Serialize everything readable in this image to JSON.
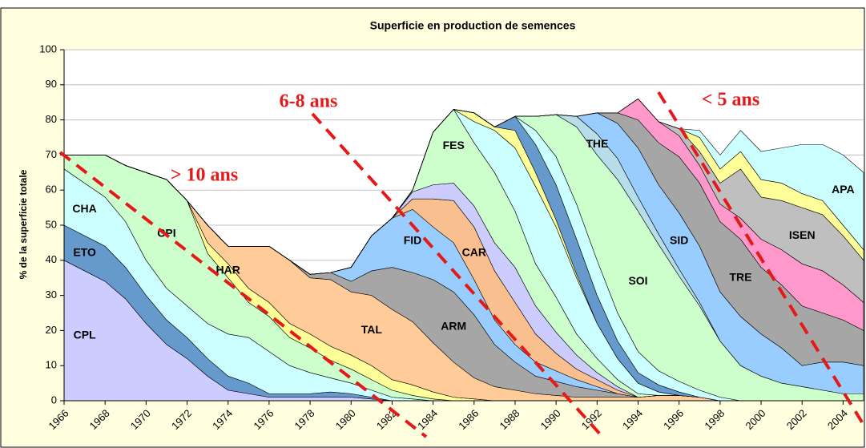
{
  "chart_data": {
    "type": "stacked-area",
    "title": "Superficie en production de semences",
    "ylabel": "% de la superficie totale",
    "ylim": [
      0,
      100
    ],
    "yticks": [
      0,
      10,
      20,
      30,
      40,
      50,
      60,
      70,
      80,
      90,
      100
    ],
    "xlim": [
      1966,
      2005
    ],
    "xticks": [
      1966,
      1968,
      1970,
      1972,
      1974,
      1976,
      1978,
      1980,
      1982,
      1984,
      1986,
      1988,
      1990,
      1992,
      1994,
      1996,
      1998,
      2000,
      2002,
      2004
    ],
    "grid": true,
    "annotations": [
      "> 10 ans",
      "6-8 ans",
      "< 5 ans"
    ],
    "x": [
      1966,
      1967,
      1968,
      1969,
      1970,
      1971,
      1972,
      1973,
      1974,
      1975,
      1976,
      1977,
      1978,
      1979,
      1980,
      1981,
      1982,
      1983,
      1984,
      1985,
      1986,
      1987,
      1988,
      1989,
      1990,
      1991,
      1992,
      1993,
      1994,
      1995,
      1996,
      1997,
      1998,
      1999,
      2000,
      2001,
      2002,
      2003,
      2004,
      2005
    ],
    "series": [
      {
        "name": "CPL",
        "color": "#ccccff",
        "values": [
          40,
          37,
          34,
          29,
          22,
          16,
          12,
          7,
          3,
          2,
          1,
          1,
          1,
          1,
          1,
          0.5,
          0,
          0,
          0,
          0,
          0,
          0,
          0,
          0,
          0,
          0,
          0,
          0,
          0,
          0,
          0,
          0,
          0,
          0,
          0,
          0,
          0,
          0,
          0,
          0
        ]
      },
      {
        "name": "ETO",
        "color": "#6699cc",
        "values": [
          10,
          10,
          10,
          9,
          8,
          7,
          6,
          5,
          4,
          3,
          1,
          1,
          1,
          1.5,
          1,
          0.5,
          0,
          0,
          0,
          0,
          0,
          0,
          0,
          0,
          0,
          0,
          0,
          0,
          0,
          0,
          0,
          0,
          0,
          0,
          0,
          0,
          0,
          0,
          0,
          0
        ]
      },
      {
        "name": "CHA",
        "color": "#ccffff",
        "values": [
          16,
          15,
          14,
          13,
          10,
          9,
          9,
          10,
          12,
          13,
          12,
          8,
          6,
          4,
          3,
          2,
          1,
          0.5,
          0,
          0,
          0,
          0,
          0,
          0,
          0,
          0,
          0,
          0,
          0,
          0,
          0,
          0,
          0,
          0,
          0,
          0,
          0,
          0,
          0,
          0
        ]
      },
      {
        "name": "CPI",
        "color": "#ccffcc",
        "values": [
          4,
          8,
          12,
          16,
          25,
          31,
          30,
          20,
          16,
          10,
          10,
          8,
          7,
          5,
          4,
          3,
          2,
          1,
          0.5,
          0,
          0,
          0,
          0,
          0,
          0,
          0,
          0,
          0,
          0,
          0,
          0,
          0,
          0,
          0,
          0,
          0,
          0,
          0,
          0,
          0
        ]
      },
      {
        "name": "HAR",
        "color": "#ffff99",
        "values": [
          0,
          0,
          0,
          0,
          0,
          0,
          0,
          3,
          4,
          4,
          4,
          4,
          4,
          4,
          4,
          4,
          3,
          3,
          2,
          1,
          0.5,
          0,
          0,
          0,
          0,
          0,
          0,
          0,
          0,
          0,
          0,
          0,
          0,
          0,
          0,
          0,
          0,
          0,
          0,
          0
        ]
      },
      {
        "name": "TAL",
        "color": "#ffcc99",
        "values": [
          0,
          0,
          0,
          0,
          0,
          0,
          0,
          5,
          5,
          12,
          16,
          18,
          16,
          19,
          18,
          20,
          20,
          18,
          14,
          10,
          6,
          4,
          3,
          2,
          1.5,
          1,
          1,
          1,
          1,
          1.5,
          1.5,
          1,
          0,
          0,
          0,
          0,
          0,
          0,
          0,
          0
        ]
      },
      {
        "name": "ARM",
        "color": "#a6a6a6",
        "values": [
          0,
          0,
          0,
          0,
          0,
          0,
          0,
          0,
          0,
          0,
          0,
          0,
          1,
          2,
          3,
          7,
          12,
          14,
          18,
          20,
          18,
          12,
          8,
          5,
          4,
          3,
          2,
          1,
          0,
          0,
          0,
          0,
          0,
          0,
          0,
          0,
          0,
          0,
          0,
          0
        ]
      },
      {
        "name": "FID",
        "color": "#99ccff",
        "values": [
          0,
          0,
          0,
          0,
          0,
          0,
          0,
          0,
          0,
          0,
          0,
          0,
          0,
          0,
          4,
          10,
          14,
          18,
          15,
          14,
          10,
          7,
          5,
          4,
          3,
          2,
          1,
          0,
          0,
          0,
          0,
          0,
          0,
          0,
          0,
          0,
          0,
          0,
          0,
          0
        ]
      },
      {
        "name": "CAR",
        "color": "#fabf8f",
        "values": [
          0,
          0,
          0,
          0,
          0,
          0,
          0,
          0,
          0,
          0,
          0,
          0,
          0,
          0,
          0,
          0,
          0,
          3,
          8,
          12,
          15,
          14,
          12,
          8,
          5,
          3,
          2,
          1,
          0,
          0,
          0,
          0,
          0,
          0,
          0,
          0,
          0,
          0,
          0,
          0
        ]
      },
      {
        "color": "#ccccff",
        "values": [
          0,
          0,
          0,
          0,
          0,
          0,
          0,
          0,
          0,
          0,
          0,
          0,
          0,
          0,
          0,
          0,
          0,
          2,
          4,
          5,
          6,
          8,
          10,
          8,
          6,
          4,
          2,
          1,
          0,
          0,
          0,
          0,
          0,
          0,
          0,
          0,
          0,
          0,
          0,
          0
        ]
      },
      {
        "name": "FES",
        "color": "#ccffcc",
        "values": [
          0,
          0,
          0,
          0,
          0,
          0,
          0,
          0,
          0,
          0,
          0,
          0,
          0,
          0,
          0,
          0,
          0,
          0.5,
          15,
          21,
          18,
          20,
          16,
          12,
          10,
          6,
          4,
          2,
          1,
          0,
          0,
          0,
          0,
          0,
          0,
          0,
          0,
          0,
          0,
          0
        ]
      },
      {
        "color": "#ccffff",
        "values": [
          0,
          0,
          0,
          0,
          0,
          0,
          0,
          0,
          0,
          0,
          0,
          0,
          0,
          0,
          0,
          0,
          0,
          0,
          0,
          0,
          6,
          12,
          18,
          22,
          20,
          16,
          10,
          6,
          3,
          1,
          0,
          0,
          0,
          0,
          0,
          0,
          0,
          0,
          0,
          0
        ]
      },
      {
        "color": "#ffff99",
        "values": [
          0,
          0,
          0,
          0,
          0,
          0,
          0,
          0,
          0,
          0,
          0,
          0,
          0,
          0,
          0,
          0,
          0,
          0,
          0,
          0,
          2.5,
          1,
          5,
          4,
          2,
          1,
          0,
          0,
          0,
          0,
          0,
          0,
          0,
          0,
          0,
          0,
          0,
          0,
          0,
          0
        ]
      },
      {
        "color": "#6699cc",
        "values": [
          0,
          0,
          0,
          0,
          0,
          0,
          0,
          0,
          0,
          0,
          0,
          0,
          0,
          0,
          0,
          0,
          0,
          0,
          0,
          0,
          0,
          0,
          4,
          8,
          10,
          10,
          8,
          5,
          3,
          2,
          1,
          0,
          0,
          0,
          0,
          0,
          0,
          0,
          0,
          0
        ]
      },
      {
        "color": "#ccffff",
        "values": [
          0,
          0,
          0,
          0,
          0,
          0,
          0,
          0,
          0,
          0,
          0,
          0,
          0,
          0,
          0,
          0,
          0,
          0,
          0,
          0,
          0,
          0,
          0,
          4,
          8,
          10,
          10,
          8,
          6,
          4,
          3,
          2,
          1,
          0,
          0,
          0,
          0,
          0,
          0,
          0
        ]
      },
      {
        "name": "SOI",
        "color": "#ccffcc",
        "values": [
          0,
          0,
          0,
          0,
          0,
          0,
          0,
          0,
          0,
          0,
          0,
          0,
          0,
          0,
          0,
          0,
          0,
          0,
          0,
          0,
          0,
          0,
          0,
          4,
          12,
          22,
          30,
          38,
          40,
          36,
          30,
          24,
          16,
          10,
          7,
          5,
          4,
          3,
          2,
          2
        ]
      },
      {
        "name": "THE",
        "color": "#b7dee8",
        "values": [
          0,
          0,
          0,
          0,
          0,
          0,
          0,
          0,
          0,
          0,
          0,
          0,
          0,
          0,
          0,
          0,
          0,
          0,
          0,
          0,
          0,
          0,
          0,
          0,
          0,
          3,
          6,
          6,
          4,
          3,
          2,
          1,
          0,
          0,
          0,
          0,
          0,
          0,
          0,
          0
        ]
      },
      {
        "name": "SID",
        "color": "#99ccff",
        "values": [
          0,
          0,
          0,
          0,
          0,
          0,
          0,
          0,
          0,
          0,
          0,
          0,
          0,
          0,
          0,
          0,
          0,
          0,
          0,
          0,
          0,
          0,
          0,
          0,
          0,
          0,
          6,
          10,
          14,
          14,
          16,
          16,
          14,
          14,
          12,
          10,
          6,
          8,
          9,
          8
        ]
      },
      {
        "name": "TRE",
        "color": "#a6a6a6",
        "values": [
          0,
          0,
          0,
          0,
          0,
          0,
          0,
          0,
          0,
          0,
          0,
          0,
          0,
          0,
          0,
          0,
          0,
          0,
          0,
          0,
          0,
          0,
          0,
          0,
          0,
          0,
          0,
          3,
          8,
          12,
          16,
          18,
          20,
          22,
          19,
          18,
          17,
          14,
          12,
          10
        ]
      },
      {
        "color": "#ff99cc",
        "values": [
          0,
          0,
          0,
          0,
          0,
          0,
          0,
          0,
          0,
          0,
          0,
          0,
          0,
          0,
          0,
          0,
          0,
          0,
          0,
          0,
          0,
          0,
          0,
          0,
          0,
          0,
          0,
          0,
          6,
          6,
          6,
          5,
          5,
          6,
          8,
          10,
          12,
          12,
          10,
          8
        ]
      },
      {
        "name": "ISEN",
        "color": "#bfbfbf",
        "values": [
          0,
          0,
          0,
          0,
          0,
          0,
          0,
          0,
          0,
          0,
          0,
          0,
          0,
          0,
          0,
          0,
          0,
          0,
          0,
          0,
          0,
          0,
          0,
          0,
          0,
          0,
          0,
          0,
          0,
          0,
          2,
          4,
          6,
          14,
          12,
          14,
          16,
          16,
          14,
          12
        ]
      },
      {
        "color": "#ffff99",
        "values": [
          0,
          0,
          0,
          0,
          0,
          0,
          0,
          0,
          0,
          0,
          0,
          0,
          0,
          0,
          0,
          0,
          0,
          0,
          0,
          0,
          0,
          0,
          0,
          0,
          0,
          0,
          0,
          0,
          0,
          0,
          0,
          4,
          4,
          5,
          5,
          5,
          4,
          4,
          3,
          3
        ]
      },
      {
        "name": "APA",
        "color": "#ccffff",
        "values": [
          0,
          0,
          0,
          0,
          0,
          0,
          0,
          0,
          0,
          0,
          0,
          0,
          0,
          0,
          0,
          0,
          0,
          0,
          0,
          0,
          0,
          0,
          0,
          0,
          0,
          0,
          0,
          0,
          0,
          0,
          0,
          2,
          4,
          6,
          8,
          10,
          14,
          16,
          20,
          22
        ]
      }
    ]
  }
}
